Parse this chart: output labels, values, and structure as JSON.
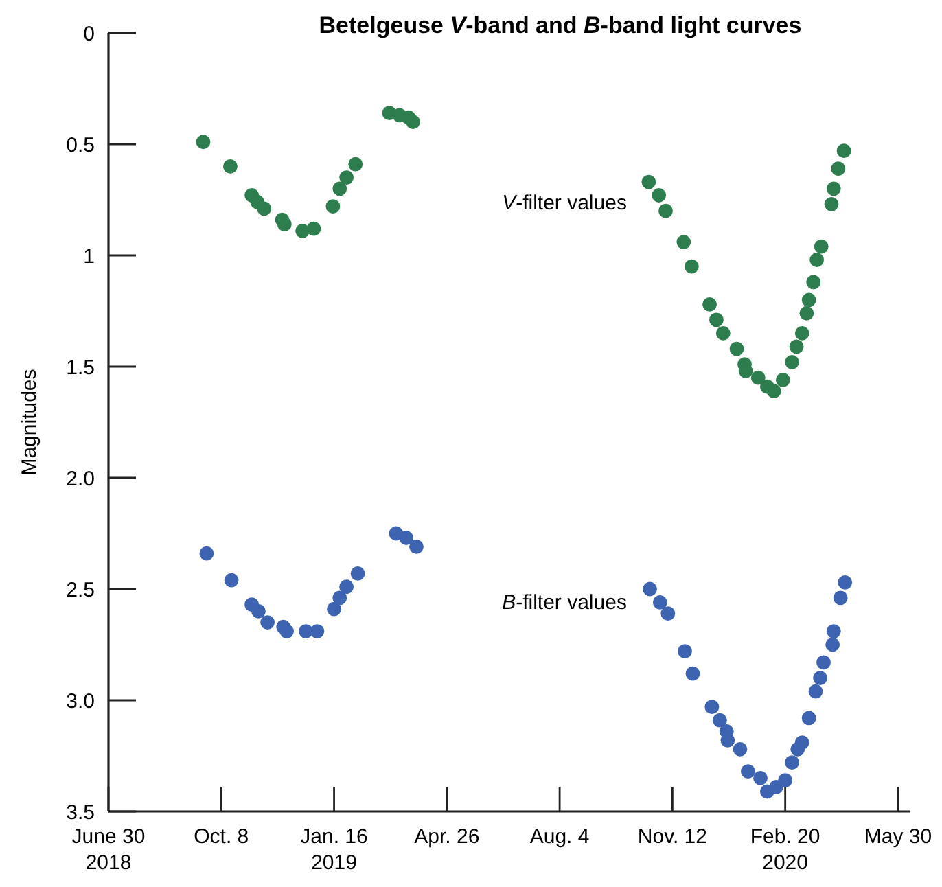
{
  "chart_data": {
    "type": "scatter",
    "title": "Betelgeuse V-band and B-band light curves",
    "ylabel": "Magnitudes",
    "marker": "circle",
    "grid": false,
    "xlim": [
      "2018-06-30",
      "2020-06-10"
    ],
    "xticks": [
      {
        "value": "2018-06-30",
        "label": "June 30\n2018"
      },
      {
        "value": "2018-10-08",
        "label": "Oct. 8"
      },
      {
        "value": "2019-01-16",
        "label": "Jan. 16\n2019"
      },
      {
        "value": "2019-04-26",
        "label": "Apr. 26"
      },
      {
        "value": "2019-08-04",
        "label": "Aug. 4"
      },
      {
        "value": "2019-11-12",
        "label": "Nov. 12"
      },
      {
        "value": "2020-02-20",
        "label": "Feb. 20\n2020"
      },
      {
        "value": "2020-05-30",
        "label": "May 30"
      }
    ],
    "ylim": [
      3.5,
      0
    ],
    "yticks": [
      0,
      0.5,
      1,
      1.5,
      {
        "value": 2,
        "label": "2.0"
      },
      2.5,
      {
        "value": 3,
        "label": "3.0"
      },
      3.5
    ],
    "series": [
      {
        "name": "V-filter values",
        "color": "#2e7d4f",
        "x": [
          "2018-09-22",
          "2018-10-16",
          "2018-11-04",
          "2018-11-09",
          "2018-11-15",
          "2018-12-01",
          "2018-12-03",
          "2018-12-19",
          "2018-12-29",
          "2019-01-15",
          "2019-01-21",
          "2019-01-27",
          "2019-02-04",
          "2019-03-06",
          "2019-03-15",
          "2019-03-23",
          "2019-03-27",
          "2019-10-22",
          "2019-10-31",
          "2019-11-06",
          "2019-11-22",
          "2019-11-29",
          "2019-12-15",
          "2019-12-21",
          "2019-12-27",
          "2020-01-08",
          "2020-01-15",
          "2020-01-16",
          "2020-01-27",
          "2020-02-04",
          "2020-02-10",
          "2020-02-18",
          "2020-02-26",
          "2020-03-01",
          "2020-03-06",
          "2020-03-10",
          "2020-03-12",
          "2020-03-16",
          "2020-03-19",
          "2020-03-23",
          "2020-04-01",
          "2020-04-03",
          "2020-04-07",
          "2020-04-12"
        ],
        "values": [
          0.49,
          0.6,
          0.73,
          0.76,
          0.79,
          0.84,
          0.86,
          0.89,
          0.88,
          0.78,
          0.7,
          0.65,
          0.59,
          0.36,
          0.37,
          0.38,
          0.4,
          0.67,
          0.73,
          0.8,
          0.94,
          1.05,
          1.22,
          1.29,
          1.35,
          1.42,
          1.49,
          1.52,
          1.55,
          1.59,
          1.61,
          1.56,
          1.48,
          1.41,
          1.35,
          1.26,
          1.2,
          1.12,
          1.02,
          0.96,
          0.77,
          0.7,
          0.61,
          0.53
        ]
      },
      {
        "name": "B-filter values",
        "color": "#3e63b0",
        "x": [
          "2018-09-25",
          "2018-10-17",
          "2018-11-04",
          "2018-11-10",
          "2018-11-18",
          "2018-12-02",
          "2018-12-05",
          "2018-12-22",
          "2019-01-01",
          "2019-01-16",
          "2019-01-21",
          "2019-01-27",
          "2019-02-06",
          "2019-03-12",
          "2019-03-21",
          "2019-03-30",
          "2019-10-23",
          "2019-11-01",
          "2019-11-08",
          "2019-11-23",
          "2019-11-30",
          "2019-12-17",
          "2019-12-24",
          "2019-12-30",
          "2019-12-31",
          "2020-01-11",
          "2020-01-18",
          "2020-01-29",
          "2020-02-04",
          "2020-02-12",
          "2020-02-20",
          "2020-02-26",
          "2020-03-02",
          "2020-03-06",
          "2020-03-12",
          "2020-03-18",
          "2020-03-22",
          "2020-03-25",
          "2020-04-02",
          "2020-04-03",
          "2020-04-09",
          "2020-04-13"
        ],
        "values": [
          2.34,
          2.46,
          2.57,
          2.6,
          2.65,
          2.67,
          2.69,
          2.69,
          2.69,
          2.59,
          2.54,
          2.49,
          2.43,
          2.25,
          2.27,
          2.31,
          2.5,
          2.56,
          2.61,
          2.78,
          2.88,
          3.03,
          3.09,
          3.14,
          3.18,
          3.22,
          3.32,
          3.35,
          3.41,
          3.39,
          3.36,
          3.28,
          3.22,
          3.19,
          3.08,
          2.96,
          2.9,
          2.83,
          2.75,
          2.69,
          2.54,
          2.47
        ]
      }
    ]
  }
}
